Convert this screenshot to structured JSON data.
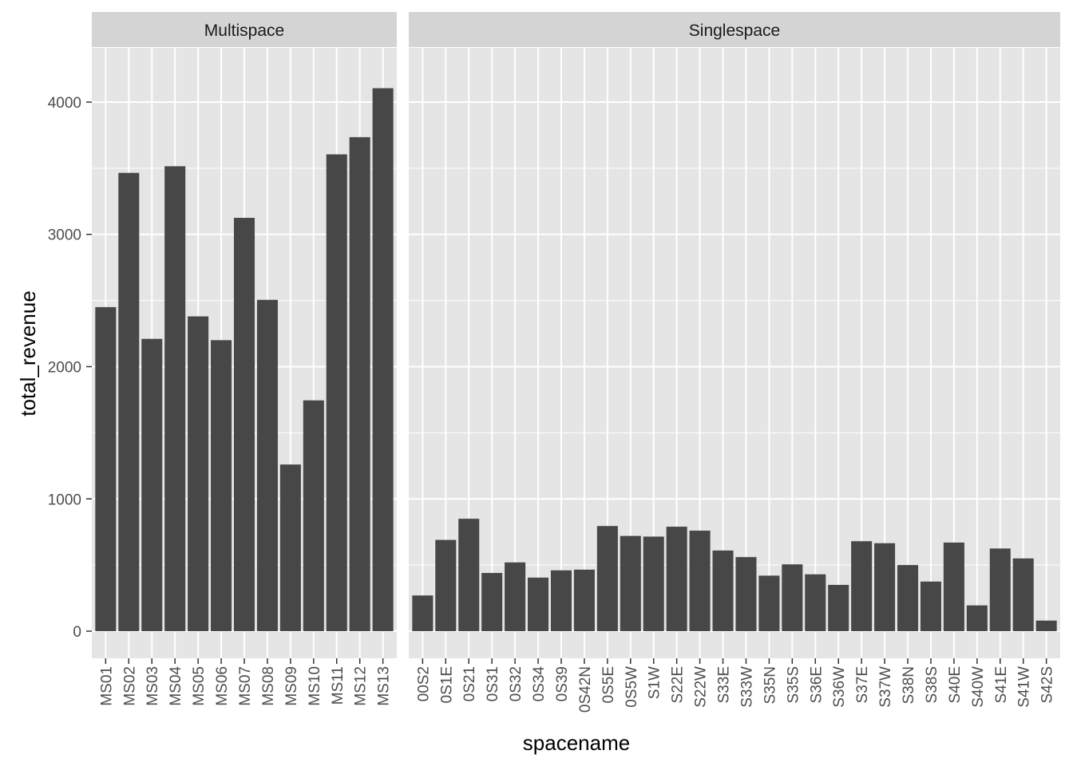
{
  "chart_data": {
    "type": "bar",
    "xlabel": "spacename",
    "ylabel": "total_revenue",
    "ylim": [
      -205,
      4410
    ],
    "yticks": [
      0,
      1000,
      2000,
      3000,
      4000
    ],
    "grid": true,
    "colors": {
      "panel_bg": "#e5e5e5",
      "strip_bg": "#d4d4d4",
      "bar": "#474747",
      "grid": "#ffffff"
    },
    "facets": [
      {
        "name": "Multispace",
        "categories": [
          "MS01",
          "MS02",
          "MS03",
          "MS04",
          "MS05",
          "MS06",
          "MS07",
          "MS08",
          "MS09",
          "MS10",
          "MS11",
          "MS12",
          "MS13"
        ],
        "values": [
          2450,
          3465,
          2210,
          3515,
          2380,
          2200,
          3125,
          2505,
          1260,
          1745,
          3605,
          3735,
          4105
        ]
      },
      {
        "name": "Singlespace",
        "categories": [
          "00S2",
          "0S1E",
          "0S21",
          "0S31",
          "0S32",
          "0S34",
          "0S39",
          "0S42N",
          "0S5E",
          "0S5W",
          "S1W",
          "S22E",
          "S22W",
          "S33E",
          "S33W",
          "S35N",
          "S35S",
          "S36E",
          "S36W",
          "S37E",
          "S37W",
          "S38N",
          "S38S",
          "S40E",
          "S40W",
          "S41E",
          "S41W",
          "S42S"
        ],
        "values": [
          270,
          690,
          850,
          440,
          520,
          405,
          460,
          465,
          795,
          720,
          715,
          790,
          760,
          610,
          560,
          420,
          505,
          430,
          350,
          680,
          665,
          500,
          375,
          670,
          195,
          625,
          550,
          80
        ]
      }
    ]
  }
}
